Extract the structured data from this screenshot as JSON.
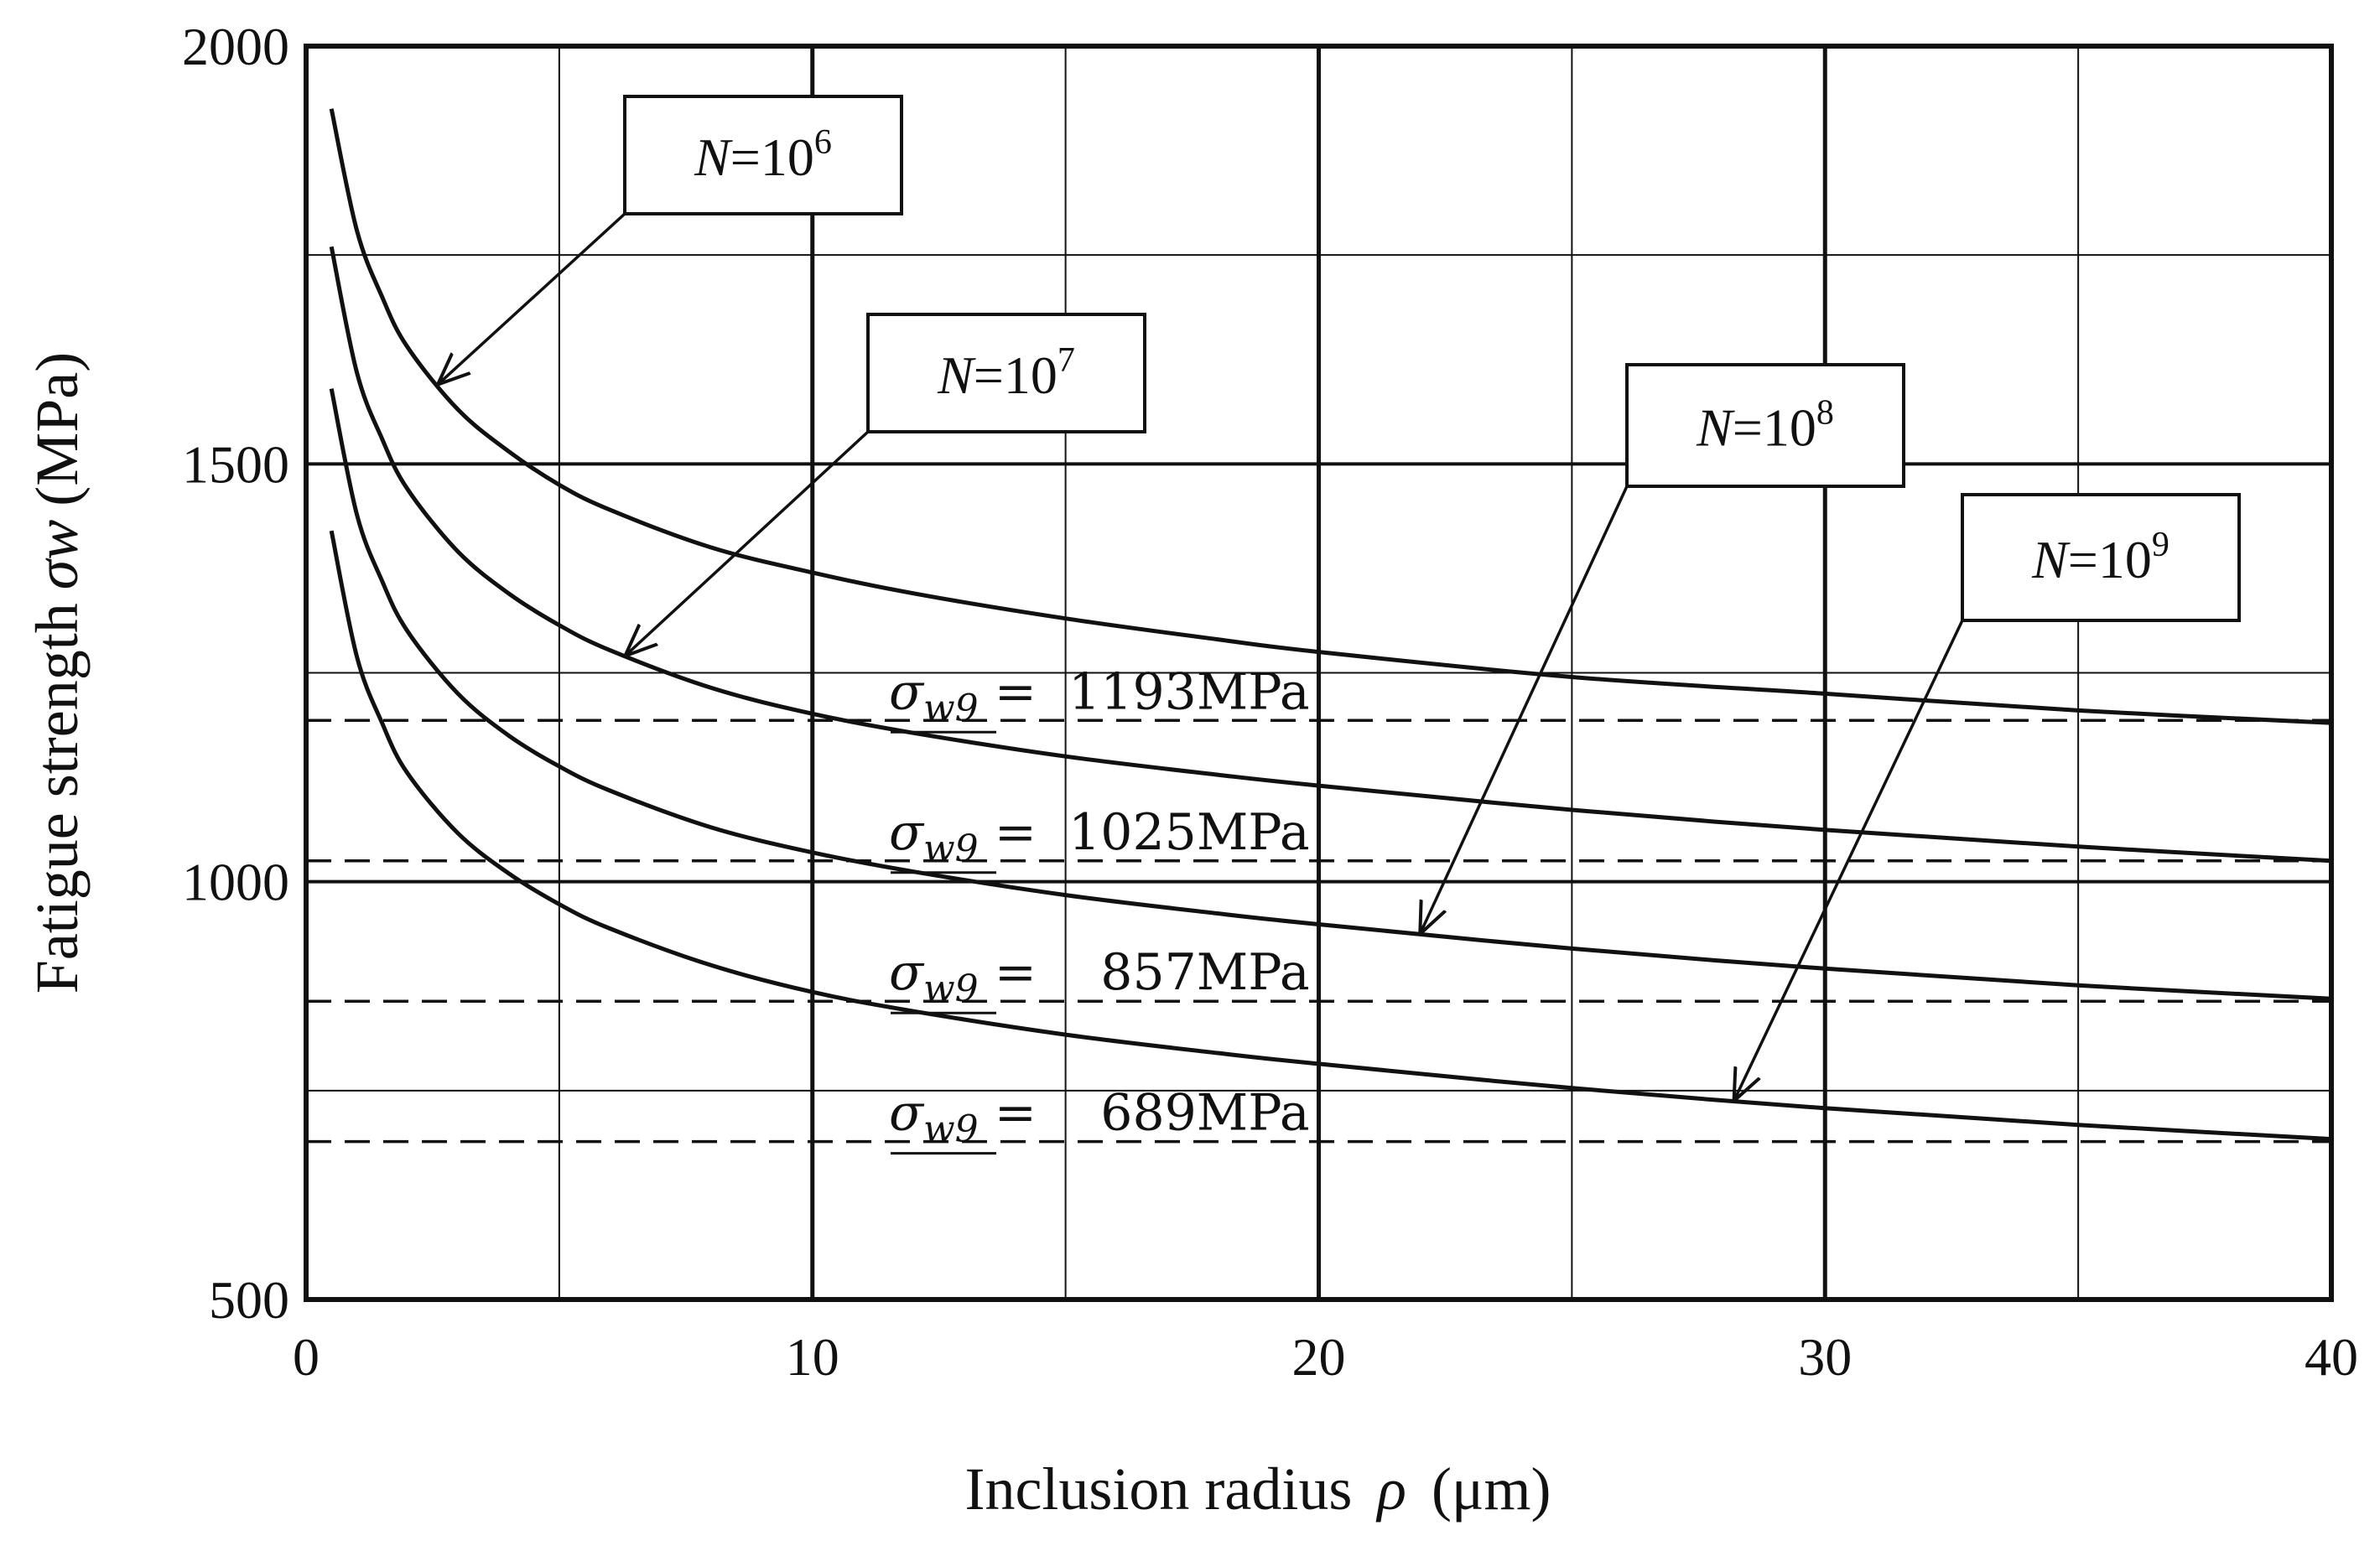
{
  "chart_data": {
    "type": "line",
    "xlabel": "Inclusion radius",
    "xlabel_symbol": "ρ",
    "xlabel_unit": "(μm)",
    "ylabel": "Fatigue strength",
    "ylabel_symbol": "σw",
    "ylabel_unit": "(MPa)",
    "xlim": [
      0,
      40
    ],
    "ylim": [
      500,
      2000
    ],
    "x_ticks": [
      0,
      10,
      20,
      30,
      40
    ],
    "x_tick_labels": [
      "0",
      "10",
      "20",
      "30",
      "40"
    ],
    "y_ticks": [
      500,
      1000,
      1500,
      2000
    ],
    "y_tick_labels": [
      "500",
      "1000",
      "1500",
      "2000"
    ],
    "x_grid_minor": [
      5,
      15,
      25,
      35
    ],
    "y_grid_minor": [
      750,
      1250,
      1750
    ],
    "grid": true,
    "x": [
      0.5,
      1,
      1.5,
      2,
      3,
      4,
      5,
      6,
      8,
      10,
      12,
      15,
      18,
      20,
      25,
      30,
      35,
      40
    ],
    "series": [
      {
        "name": "N=10^6",
        "values": [
          1925,
          1780,
          1700,
          1640,
          1565,
          1515,
          1475,
          1445,
          1400,
          1370,
          1345,
          1315,
          1290,
          1275,
          1245,
          1225,
          1205,
          1190
        ]
      },
      {
        "name": "N=10^7",
        "values": [
          1760,
          1610,
          1530,
          1470,
          1395,
          1345,
          1307,
          1277,
          1232,
          1201,
          1178,
          1150,
          1128,
          1115,
          1086,
          1062,
          1042,
          1025
        ]
      },
      {
        "name": "N=10^8",
        "values": [
          1590,
          1440,
          1360,
          1300,
          1225,
          1175,
          1138,
          1109,
          1065,
          1035,
          1012,
          984,
          962,
          949,
          920,
          896,
          876,
          860
        ]
      },
      {
        "name": "N=10^9",
        "values": [
          1420,
          1270,
          1190,
          1130,
          1058,
          1010,
          973,
          944,
          900,
          868,
          845,
          817,
          795,
          782,
          753,
          729,
          709,
          692
        ]
      }
    ],
    "reference_lines": [
      {
        "value": 1193,
        "prefix": "σ",
        "sub": "w9",
        "mid": " =  ",
        "text": "1193MPa"
      },
      {
        "value": 1025,
        "prefix": "σ",
        "sub": "w9",
        "mid": " =  ",
        "text": "1025MPa"
      },
      {
        "value": 857,
        "prefix": "σ",
        "sub": "w9",
        "mid": " =    ",
        "text": "857MPa"
      },
      {
        "value": 689,
        "prefix": "σ",
        "sub": "w9",
        "mid": " =    ",
        "text": "689MPa"
      }
    ],
    "annotations": [
      {
        "base": "N",
        "eq": "=10",
        "exp": "6",
        "target_series": 0,
        "target_x": 2.6
      },
      {
        "base": "N",
        "eq": "=10",
        "exp": "7",
        "target_series": 1,
        "target_x": 6.3
      },
      {
        "base": "N",
        "eq": "=10",
        "exp": "8",
        "target_series": 2,
        "target_x": 22
      },
      {
        "base": "N",
        "eq": "=10",
        "exp": "9",
        "target_series": 3,
        "target_x": 28.2
      }
    ],
    "colors": {
      "line": "#111111",
      "grid": "#111111",
      "background": "#ffffff"
    }
  }
}
